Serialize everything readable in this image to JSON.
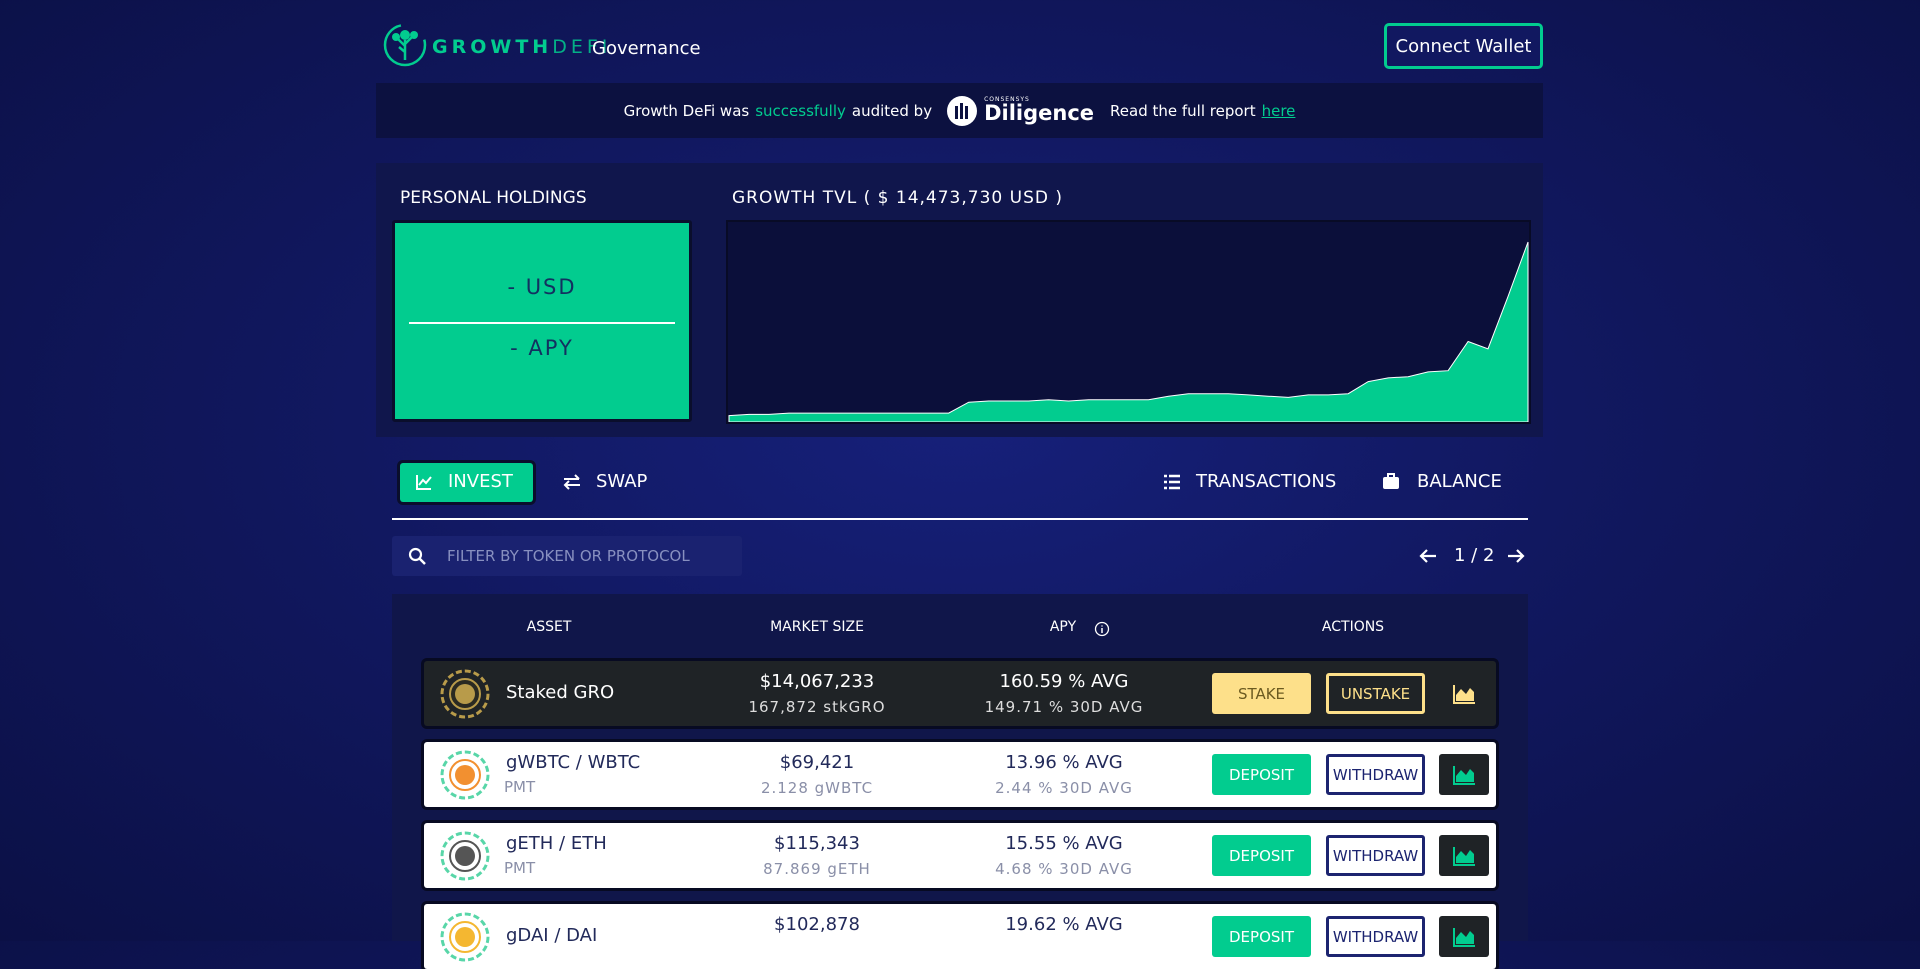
{
  "header": {
    "logo_growth": "GROWTH",
    "logo_defi": "DEFI",
    "nav": "Governance",
    "connect_button": "Connect Wallet"
  },
  "audit_banner": {
    "text_before": "Growth DeFi was",
    "highlight": "successfully",
    "text_after": "audited by",
    "auditor_small": "CONSENSYS",
    "auditor": "Diligence",
    "report_text": "Read the full report",
    "report_link": "here"
  },
  "holdings": {
    "title": "PERSONAL HOLDINGS",
    "usd": "- USD",
    "apy": "- APY"
  },
  "tvl_title": "GROWTH TVL ( $ 14,473,730 USD )",
  "chart_data": {
    "type": "area",
    "color": "#02cc8f",
    "values": [
      0.2,
      0.3,
      0.3,
      0.4,
      0.4,
      0.4,
      0.4,
      0.4,
      0.4,
      0.4,
      0.4,
      0.4,
      1.3,
      1.4,
      1.4,
      1.4,
      1.5,
      1.4,
      1.5,
      1.5,
      1.5,
      1.5,
      1.8,
      2.0,
      2.0,
      2.0,
      1.9,
      1.8,
      1.7,
      1.9,
      1.9,
      2.0,
      3.0,
      3.3,
      3.4,
      3.8,
      3.9,
      6.3,
      5.7,
      10.0,
      14.5
    ]
  },
  "tabs": [
    "INVEST",
    "SWAP",
    "TRANSACTIONS",
    "BALANCE"
  ],
  "filter_placeholder": "FILTER BY TOKEN OR PROTOCOL",
  "pagination": "1 / 2",
  "table": {
    "headers": [
      "ASSET",
      "MARKET SIZE",
      "APY",
      "ACTIONS"
    ],
    "rows": [
      {
        "asset": "Staked GRO",
        "market": "$14,067,233",
        "market_sub": "167,872 stkGRO",
        "apy": "160.59 % AVG",
        "apy_sub": "149.71 % 30D AVG",
        "actions": [
          "STAKE",
          "UNSTAKE"
        ],
        "highlight": true
      },
      {
        "asset": "gWBTC / WBTC",
        "asset_sub": "PMT",
        "market": "$69,421",
        "market_sub": "2.128 gWBTC",
        "apy": "13.96 % AVG",
        "apy_sub": "2.44 % 30D AVG",
        "actions": [
          "DEPOSIT",
          "WITHDRAW"
        ]
      },
      {
        "asset": "gETH / ETH",
        "asset_sub": "PMT",
        "market": "$115,343",
        "market_sub": "87.869 gETH",
        "apy": "15.55 % AVG",
        "apy_sub": "4.68 % 30D AVG",
        "actions": [
          "DEPOSIT",
          "WITHDRAW"
        ]
      },
      {
        "asset": "gDAI / DAI",
        "market": "$102,878",
        "apy": "19.62 % AVG",
        "actions": [
          "DEPOSIT",
          "WITHDRAW"
        ]
      }
    ]
  }
}
